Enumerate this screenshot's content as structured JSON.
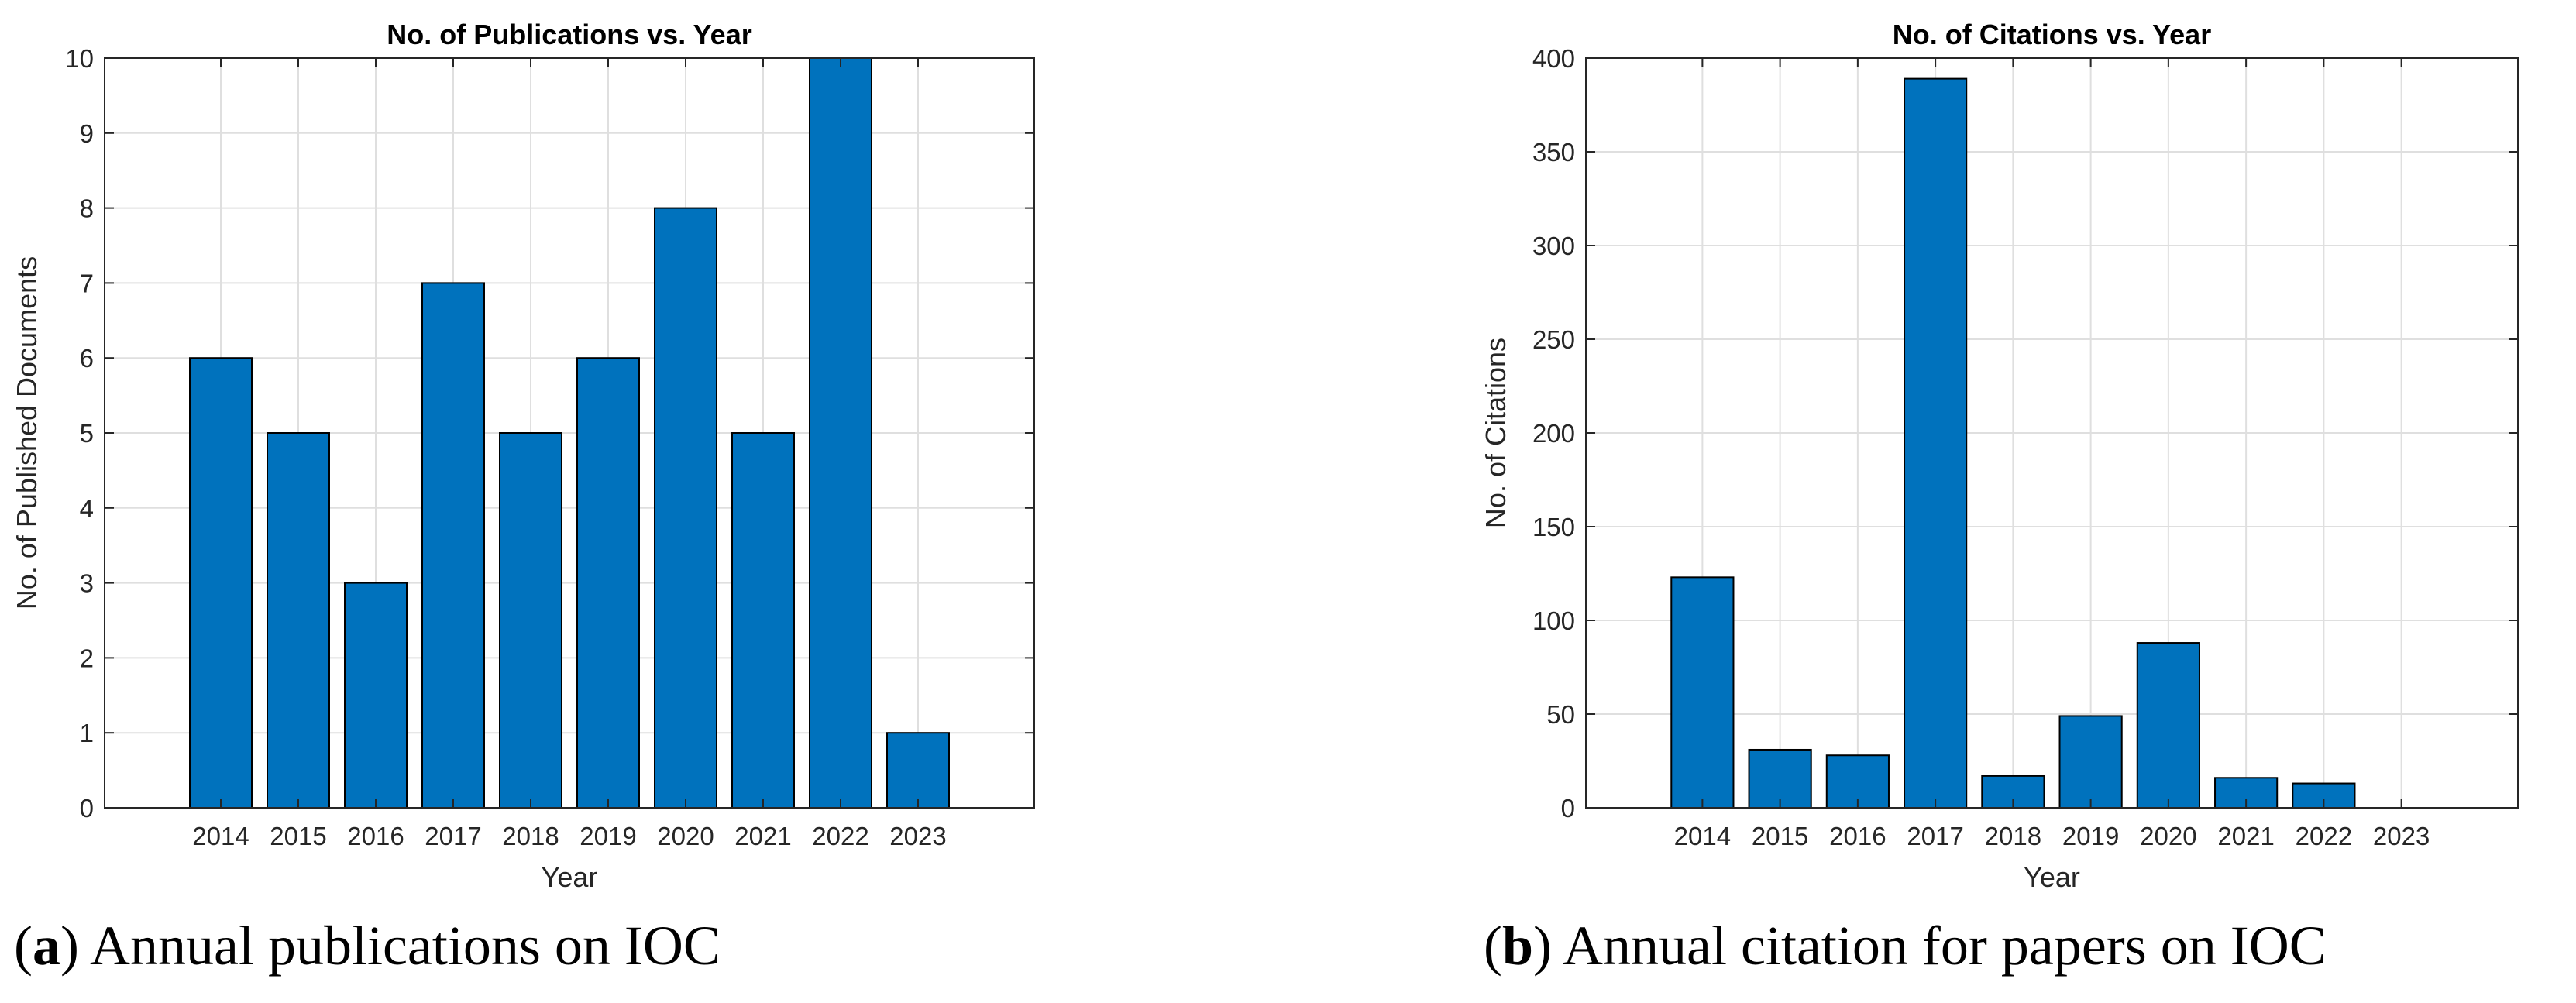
{
  "chart_data": [
    {
      "type": "bar",
      "title": "No. of Publications vs. Year",
      "xlabel": "Year",
      "ylabel": "No. of Published Documents",
      "categories": [
        "2014",
        "2015",
        "2016",
        "2017",
        "2018",
        "2019",
        "2020",
        "2021",
        "2022",
        "2023"
      ],
      "values": [
        6,
        5,
        3,
        7,
        5,
        6,
        8,
        5,
        10,
        1
      ],
      "ylim": [
        0,
        10
      ],
      "yticks": [
        0,
        1,
        2,
        3,
        4,
        5,
        6,
        7,
        8,
        9,
        10
      ],
      "grid": true,
      "bar_color": "#0072BD"
    },
    {
      "type": "bar",
      "title": "No. of Citations vs. Year",
      "xlabel": "Year",
      "ylabel": "No. of Citations",
      "categories": [
        "2014",
        "2015",
        "2016",
        "2017",
        "2018",
        "2019",
        "2020",
        "2021",
        "2022",
        "2023"
      ],
      "values": [
        123,
        31,
        28,
        389,
        17,
        49,
        88,
        16,
        13,
        0
      ],
      "ylim": [
        0,
        400
      ],
      "yticks": [
        0,
        50,
        100,
        150,
        200,
        250,
        300,
        350,
        400
      ],
      "grid": true,
      "bar_color": "#0072BD"
    }
  ],
  "captions": {
    "a": {
      "label": "a",
      "text": "Annual publications on IOC"
    },
    "b": {
      "label": "b",
      "text": "Annual citation for papers on IOC"
    }
  }
}
